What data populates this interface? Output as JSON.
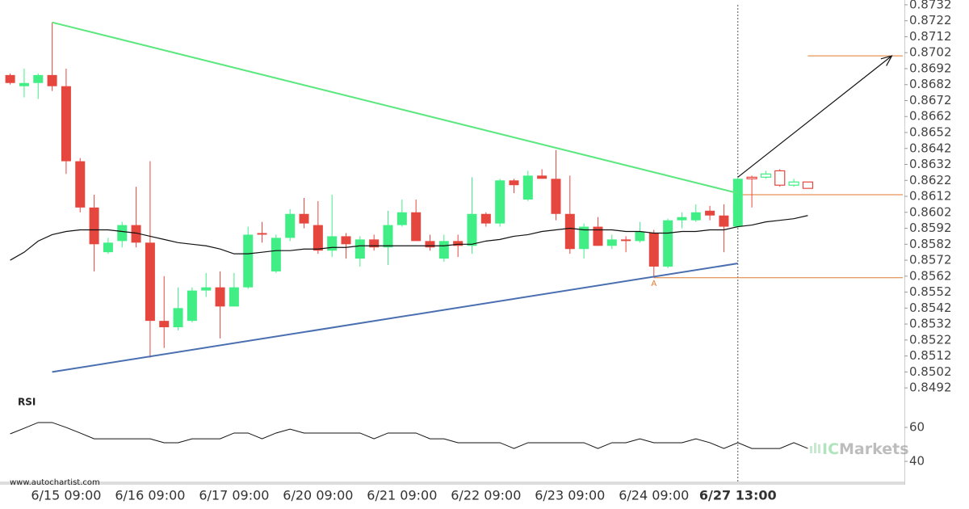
{
  "chart_data": {
    "type": "candlestick",
    "categories": [
      null,
      null,
      null,
      null,
      "6/15 09:00",
      null,
      null,
      null,
      null,
      null,
      "6/16 09:00",
      null,
      null,
      null,
      null,
      null,
      "6/17 09:00",
      null,
      null,
      null,
      null,
      null,
      "6/20 09:00",
      null,
      null,
      null,
      null,
      null,
      "6/21 09:00",
      null,
      null,
      null,
      null,
      null,
      "6/22 09:00",
      null,
      null,
      null,
      null,
      null,
      "6/23 09:00",
      null,
      null,
      null,
      null,
      null,
      "6/24 09:00",
      null,
      null,
      null,
      null,
      null,
      "6/27 13:00",
      null,
      null,
      null,
      null,
      null
    ],
    "open": [
      0.8688,
      0.8681,
      0.8683,
      0.8688,
      0.8681,
      0.8634,
      0.8605,
      0.8577,
      0.8584,
      0.8594,
      0.8583,
      0.8534,
      0.853,
      0.8534,
      0.8553,
      0.8555,
      0.8543,
      0.8555,
      0.8589,
      0.8565,
      0.8586,
      0.8601,
      0.8594,
      0.8578,
      0.8587,
      0.8573,
      0.8585,
      0.858,
      0.8594,
      0.8602,
      0.8584,
      0.8573,
      0.8584,
      0.8581,
      0.8601,
      0.8595,
      0.8622,
      0.861,
      0.8625,
      0.8623,
      0.8601,
      0.8579,
      0.8593,
      0.8581,
      0.8585,
      0.8584,
      0.8589,
      0.8568,
      0.8597,
      0.8597,
      0.8603,
      0.86,
      0.8593,
      0.8624,
      0.8624,
      0.8628,
      0.8619,
      0.8621
    ],
    "high": [
      0.8689,
      0.8692,
      0.8689,
      0.8721,
      0.8692,
      0.8636,
      0.8613,
      0.8586,
      0.8596,
      0.8618,
      0.8634,
      0.8562,
      0.8555,
      0.8555,
      0.8564,
      0.8565,
      0.8564,
      0.8593,
      0.8596,
      0.8588,
      0.8604,
      0.8611,
      0.8609,
      0.8613,
      0.8589,
      0.8587,
      0.8588,
      0.8603,
      0.861,
      0.861,
      0.8588,
      0.8588,
      0.8588,
      0.8624,
      0.8602,
      0.8623,
      0.8623,
      0.8628,
      0.8629,
      0.8641,
      0.8625,
      0.8595,
      0.8599,
      0.8588,
      0.8587,
      0.8596,
      0.8591,
      0.8598,
      0.8602,
      0.8607,
      0.8606,
      0.8607,
      0.8624,
      0.8625,
      0.8628,
      0.8629,
      0.8623,
      0.8621
    ],
    "low": [
      0.8682,
      0.8674,
      0.8673,
      0.8678,
      0.8626,
      0.8602,
      0.8565,
      0.8576,
      0.858,
      0.858,
      0.8511,
      0.8517,
      0.8528,
      0.8533,
      0.8549,
      0.8523,
      0.8543,
      0.8554,
      0.8583,
      0.8564,
      0.8584,
      0.8592,
      0.8576,
      0.8574,
      0.8573,
      0.8568,
      0.8578,
      0.8569,
      0.8593,
      0.8584,
      0.8578,
      0.8571,
      0.8574,
      0.8576,
      0.8593,
      0.8593,
      0.8614,
      0.8609,
      0.8623,
      0.8597,
      0.8576,
      0.8573,
      0.8581,
      0.8579,
      0.8577,
      0.8583,
      0.8561,
      0.8567,
      0.8592,
      0.8596,
      0.8597,
      0.8577,
      0.8592,
      0.8605,
      0.8623,
      0.8618,
      0.8618,
      0.8617
    ],
    "close": [
      0.8683,
      0.8683,
      0.8688,
      0.8681,
      0.8634,
      0.8605,
      0.8582,
      0.8583,
      0.8594,
      0.8583,
      0.8534,
      0.853,
      0.8542,
      0.8553,
      0.8555,
      0.8543,
      0.8555,
      0.8588,
      0.8588,
      0.8586,
      0.8601,
      0.8595,
      0.8578,
      0.8587,
      0.8582,
      0.8585,
      0.858,
      0.8594,
      0.8602,
      0.8584,
      0.858,
      0.8584,
      0.8581,
      0.8601,
      0.8595,
      0.8622,
      0.8619,
      0.8625,
      0.8623,
      0.8601,
      0.8579,
      0.8593,
      0.8581,
      0.8585,
      0.8584,
      0.859,
      0.8568,
      0.8597,
      0.8599,
      0.8602,
      0.86,
      0.8593,
      0.8623,
      0.8623,
      0.8626,
      0.8619,
      0.8621,
      0.8617
    ],
    "up_color": "#41ee86",
    "down_color": "#e5473f",
    "ylim": [
      0.8487,
      0.8735
    ],
    "yticks": [
      0.8732,
      0.8722,
      0.8712,
      0.8702,
      0.8692,
      0.8682,
      0.8672,
      0.8662,
      0.8652,
      0.8642,
      0.8632,
      0.8622,
      0.8612,
      0.8602,
      0.8592,
      0.8582,
      0.8572,
      0.8562,
      0.8552,
      0.8542,
      0.8532,
      0.8522,
      0.8512,
      0.8502,
      0.8492
    ],
    "ma": {
      "color": "#111111",
      "values": [
        0.8572,
        0.8577,
        0.8584,
        0.8588,
        0.859,
        0.8591,
        0.8591,
        0.8591,
        0.859,
        0.8589,
        0.8587,
        0.8585,
        0.8583,
        0.8582,
        0.8581,
        0.8579,
        0.8576,
        0.8576,
        0.8577,
        0.8578,
        0.8578,
        0.8579,
        0.8579,
        0.858,
        0.858,
        0.8581,
        0.8581,
        0.8581,
        0.8581,
        0.8581,
        0.8581,
        0.8581,
        0.8582,
        0.8582,
        0.8584,
        0.8585,
        0.8587,
        0.8588,
        0.859,
        0.8591,
        0.8592,
        0.8591,
        0.8591,
        0.8591,
        0.859,
        0.859,
        0.8589,
        0.8589,
        0.859,
        0.859,
        0.8591,
        0.8591,
        0.8593,
        0.8594,
        0.8596,
        0.8597,
        0.8598,
        0.86
      ]
    },
    "trendlines": [
      {
        "color": "#5be87f",
        "x": [
          3,
          52
        ],
        "y": [
          0.8721,
          0.8614
        ]
      },
      {
        "color": "#4a6fb0",
        "x": [
          3,
          52
        ],
        "y": [
          0.8502,
          0.857
        ]
      }
    ],
    "levels": [
      {
        "color": "#e07a2e",
        "value": 0.8613,
        "from": 52
      },
      {
        "color": "#e07a2e",
        "value": 0.8561,
        "from": 46
      },
      {
        "color": "#e07a2e",
        "value": 0.87,
        "from": 57
      }
    ],
    "arrow": {
      "color": "#111111",
      "x": [
        52,
        63
      ],
      "y": [
        0.8624,
        0.87
      ]
    },
    "pattern_label": {
      "text": "A",
      "x": 46,
      "color": "#e07a2e"
    },
    "vline_index": 52,
    "rsi": {
      "title": "RSI",
      "color": "#111111",
      "ylim": [
        28.6,
        76.2
      ],
      "yticks": [
        60,
        40
      ],
      "values": [
        56.2,
        59.5,
        62.9,
        62.9,
        60,
        56.7,
        53.3,
        53.3,
        53.3,
        53.3,
        53.3,
        51,
        51,
        53.3,
        53.3,
        53.3,
        56.7,
        56.7,
        53.3,
        56.7,
        59,
        56.7,
        56.7,
        56.7,
        56.7,
        56.7,
        53.3,
        56.7,
        56.7,
        56.7,
        53.3,
        53.3,
        51,
        51,
        51,
        51,
        47.6,
        51,
        51,
        51,
        51,
        51,
        47.6,
        51,
        51,
        53.3,
        51,
        51,
        51,
        53.3,
        51,
        47.6,
        51,
        47.6,
        47.6,
        47.6,
        51,
        47.6
      ]
    },
    "source": "www.autochartist.com",
    "watermark": [
      "IC",
      "Markets"
    ]
  }
}
